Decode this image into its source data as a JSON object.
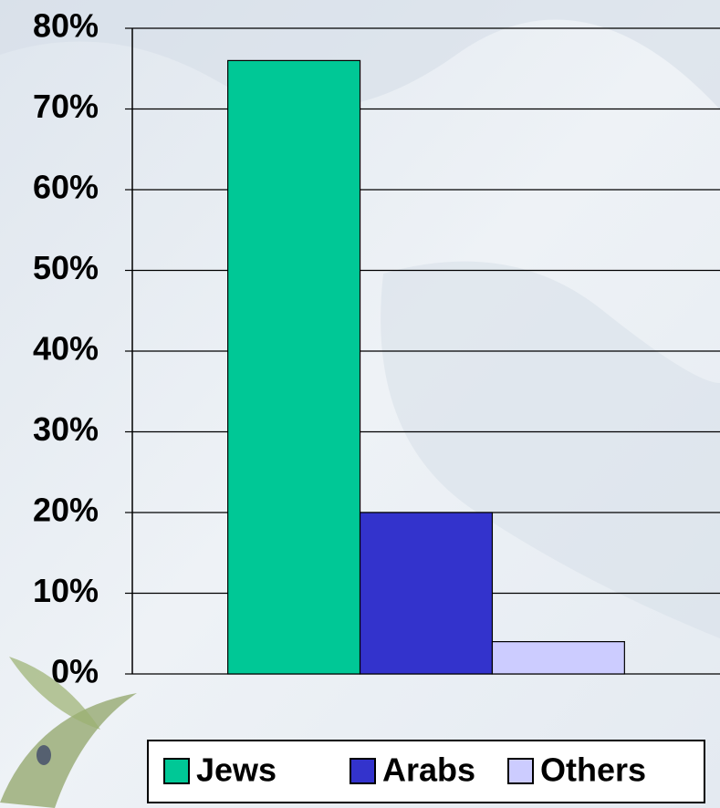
{
  "chart_data": {
    "type": "bar",
    "categories": [
      null
    ],
    "series": [
      {
        "name": "Jews",
        "color": "#00c896",
        "values": [
          76
        ]
      },
      {
        "name": "Arabs",
        "color": "#3333cc",
        "values": [
          20
        ]
      },
      {
        "name": "Others",
        "color": "#ccccff",
        "values": [
          4
        ]
      }
    ],
    "ylim": [
      0,
      80
    ],
    "yticks": [
      {
        "value": 0,
        "label": "0%"
      },
      {
        "value": 10,
        "label": "10%"
      },
      {
        "value": 20,
        "label": "20%"
      },
      {
        "value": 30,
        "label": "30%"
      },
      {
        "value": 40,
        "label": "40%"
      },
      {
        "value": 50,
        "label": "50%"
      },
      {
        "value": 60,
        "label": "60%"
      },
      {
        "value": 70,
        "label": "70%"
      },
      {
        "value": 80,
        "label": "80%"
      }
    ],
    "grid": true,
    "legend": "bottom"
  }
}
